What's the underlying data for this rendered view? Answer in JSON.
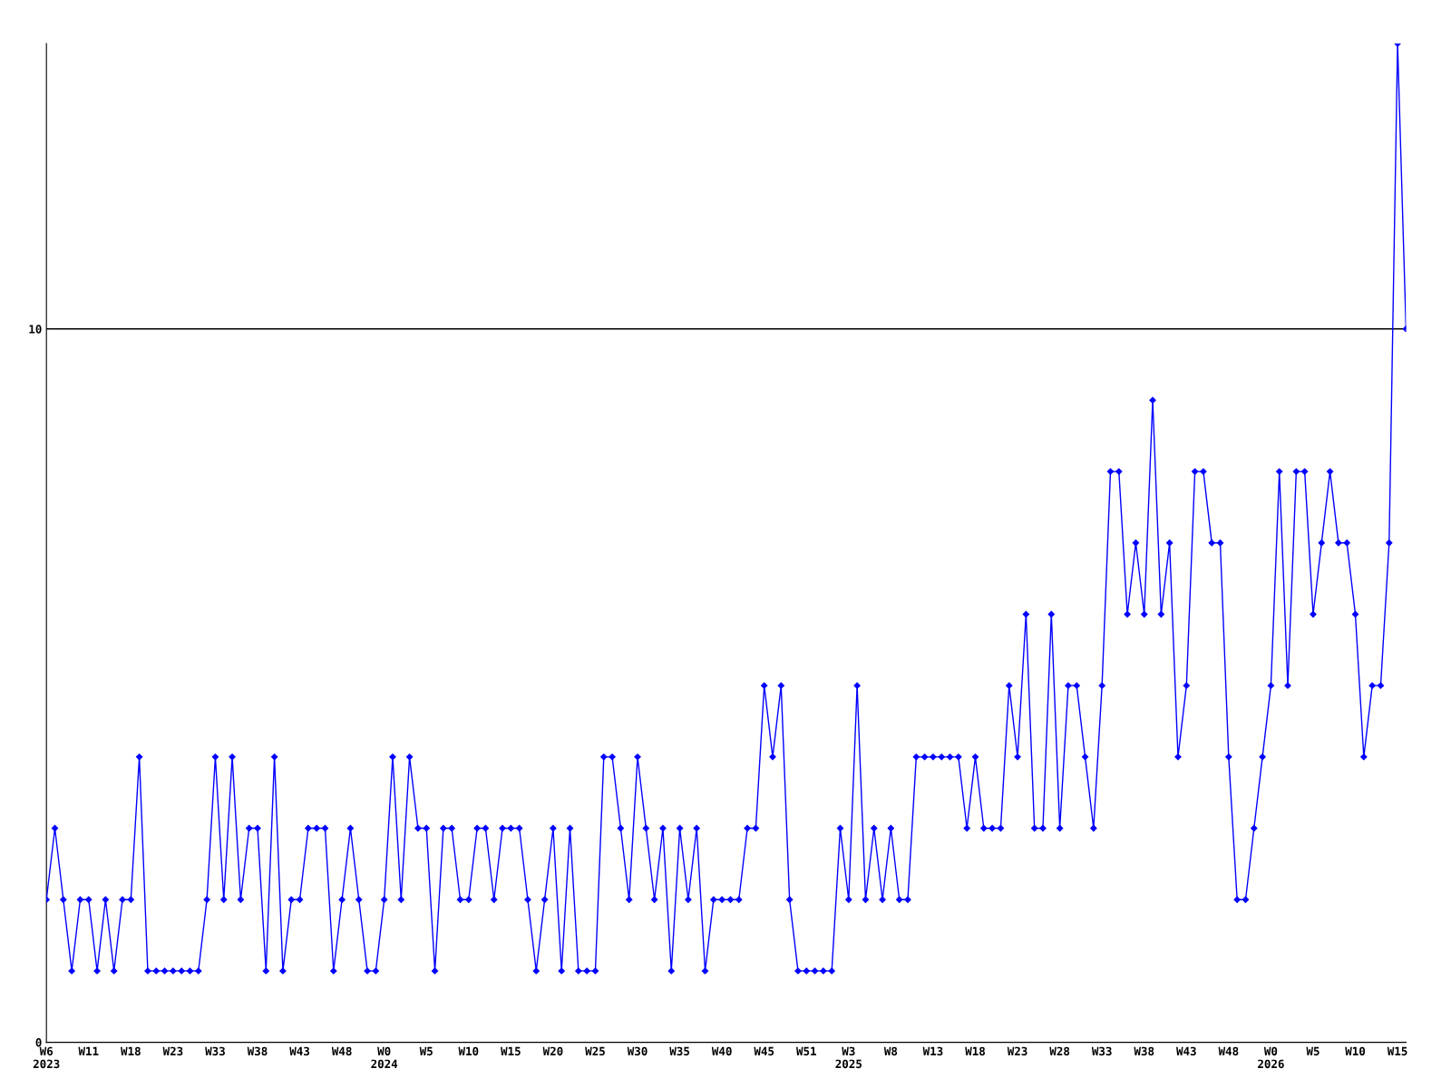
{
  "chart_data": {
    "type": "line",
    "categories": [
      "W6\n2023",
      null,
      null,
      null,
      null,
      "W11",
      null,
      null,
      null,
      null,
      "W18",
      null,
      null,
      null,
      null,
      "W23",
      null,
      null,
      null,
      null,
      "W33",
      null,
      null,
      null,
      null,
      "W38",
      null,
      null,
      null,
      null,
      "W43",
      null,
      null,
      null,
      null,
      "W48",
      null,
      null,
      null,
      null,
      "W0\n2024",
      null,
      null,
      null,
      null,
      "W5",
      null,
      null,
      null,
      null,
      "W10",
      null,
      null,
      null,
      null,
      "W15",
      null,
      null,
      null,
      null,
      "W20",
      null,
      null,
      null,
      null,
      "W25",
      null,
      null,
      null,
      null,
      "W30",
      null,
      null,
      null,
      null,
      "W35",
      null,
      null,
      null,
      null,
      "W40",
      null,
      null,
      null,
      null,
      "W45",
      null,
      null,
      null,
      null,
      "W51",
      null,
      null,
      null,
      null,
      "W3\n2025",
      null,
      null,
      null,
      null,
      "W8",
      null,
      null,
      null,
      null,
      "W13",
      null,
      null,
      null,
      null,
      "W18",
      null,
      null,
      null,
      null,
      "W23",
      null,
      null,
      null,
      null,
      "W28",
      null,
      null,
      null,
      null,
      "W33",
      null,
      null,
      null,
      null,
      "W38",
      null,
      null,
      null,
      null,
      "W43",
      null,
      null,
      null,
      null,
      "W48",
      null,
      null,
      null,
      null,
      "W0\n2026",
      null,
      null,
      null,
      null,
      "W5",
      null,
      null,
      null,
      null,
      "W10",
      null,
      null,
      null,
      null,
      "W15",
      null
    ],
    "series": [
      {
        "color": "#0000ff",
        "values": [
          2,
          3,
          2,
          1,
          2,
          2,
          1,
          2,
          1,
          2,
          2,
          4,
          1,
          1,
          1,
          1,
          1,
          1,
          1,
          2,
          4,
          2,
          4,
          2,
          3,
          3,
          1,
          4,
          1,
          2,
          2,
          3,
          3,
          3,
          1,
          2,
          3,
          2,
          1,
          1,
          2,
          4,
          2,
          4,
          3,
          3,
          1,
          3,
          3,
          2,
          2,
          3,
          3,
          2,
          3,
          3,
          3,
          2,
          1,
          2,
          3,
          1,
          3,
          1,
          1,
          1,
          4,
          4,
          3,
          2,
          4,
          3,
          2,
          3,
          1,
          3,
          2,
          3,
          1,
          2,
          2,
          2,
          2,
          3,
          3,
          5,
          4,
          5,
          2,
          1,
          1,
          1,
          1,
          1,
          3,
          2,
          5,
          2,
          3,
          2,
          3,
          2,
          2,
          4,
          4,
          4,
          4,
          4,
          4,
          3,
          4,
          3,
          3,
          3,
          5,
          4,
          6,
          3,
          3,
          6,
          3,
          5,
          5,
          4,
          3,
          5,
          8,
          8,
          6,
          7,
          6,
          9,
          6,
          7,
          4,
          5,
          8,
          8,
          7,
          7,
          4,
          2,
          2,
          3,
          4,
          5,
          8,
          5,
          8,
          8,
          6,
          7,
          8,
          7,
          7,
          6,
          4,
          5,
          5,
          7,
          14,
          10
        ]
      }
    ],
    "ylim": [
      0,
      14
    ],
    "yticks": [
      0,
      10
    ],
    "grid": "y",
    "marker": "diamond",
    "line_style": "solid",
    "legend": false
  }
}
